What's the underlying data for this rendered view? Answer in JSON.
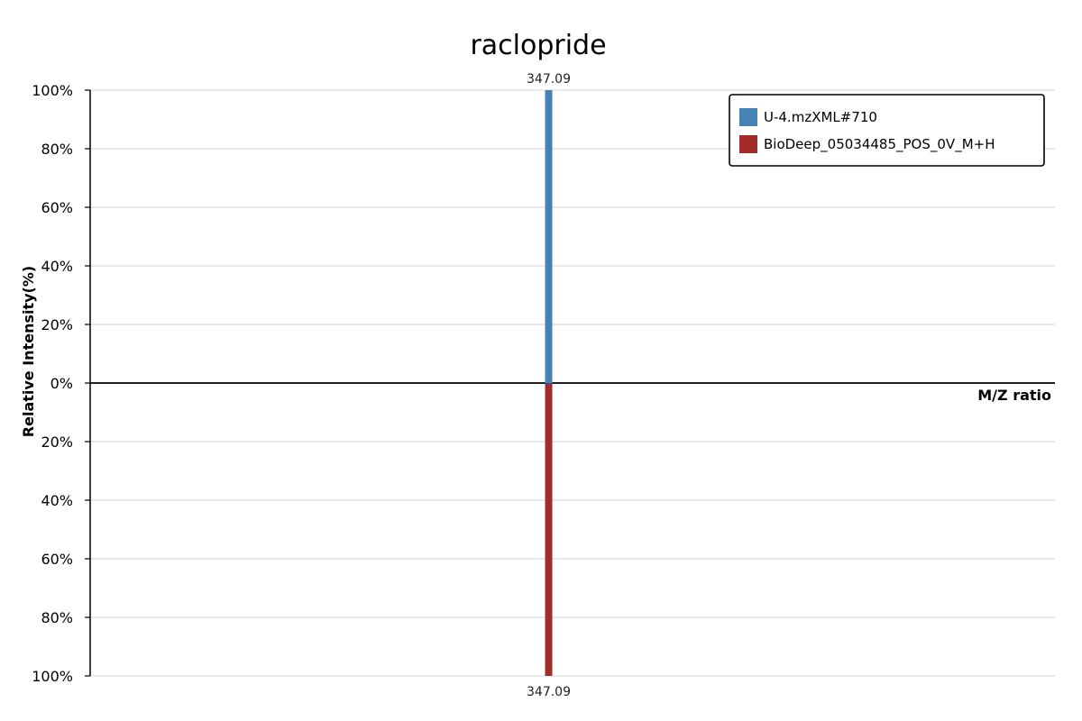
{
  "chart_data": {
    "type": "bar",
    "title": "raclopride",
    "xlabel": "M/Z ratio",
    "ylabel": "Relative Intensity(%)",
    "y_ticks_top": [
      "100%",
      "80%",
      "60%",
      "40%",
      "20%",
      "0%"
    ],
    "y_ticks_bottom": [
      "20%",
      "40%",
      "60%",
      "80%",
      "100%"
    ],
    "ylim": [
      -100,
      100
    ],
    "grid": true,
    "legend_position": "top-right",
    "series": [
      {
        "name": "U-4.mzXML#710",
        "color": "#4682B4",
        "direction": "up",
        "peaks": [
          {
            "mz": 347.09,
            "intensity": 100,
            "label": "347.09"
          }
        ]
      },
      {
        "name": "BioDeep_05034485_POS_0V_M+H",
        "color": "#A52A2A",
        "direction": "down",
        "peaks": [
          {
            "mz": 347.09,
            "intensity": 100,
            "label": "347.09"
          }
        ]
      }
    ]
  }
}
